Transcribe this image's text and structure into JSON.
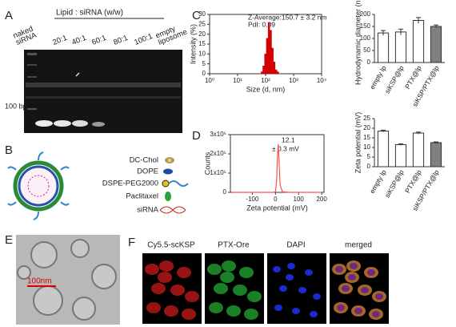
{
  "panels": {
    "A": {
      "label": "A",
      "header": "Lipid : siRNA (w/w)",
      "lanes": [
        "naked siRNA",
        "20:1",
        "40:1",
        "60:1",
        "80:1",
        "100:1",
        "empty liposome"
      ],
      "marker": "100 bp"
    },
    "B": {
      "label": "B",
      "legend": [
        "DC-Chol",
        "DOPE",
        "DSPE-PEG2000",
        "Paclitaxel",
        "siRNA"
      ]
    },
    "C": {
      "label": "C"
    },
    "D": {
      "label": "D"
    },
    "E": {
      "label": "E",
      "scale_bar": "100nm"
    },
    "F": {
      "label": "F",
      "images": [
        "Cy5.5-scKSP",
        "PTX-Ore",
        "DAPI",
        "merged"
      ]
    }
  },
  "chart_data": [
    {
      "type": "histogram",
      "annotations": [
        "Z-Average:150.7 ± 3.2 nm",
        "PdI: 0.09"
      ],
      "xlabel": "Size (d, nm)",
      "ylabel": "Intensity (%)",
      "bins": [
        68,
        79,
        91,
        106,
        122,
        142,
        164,
        190,
        220,
        255,
        295
      ],
      "values": [
        1,
        4,
        10,
        18,
        26,
        22,
        13,
        6,
        2,
        1
      ],
      "color": "#e00000",
      "log_x": true,
      "xlim": [
        1,
        10000
      ],
      "xticks": [
        {
          "value": 1,
          "label": "10⁰"
        },
        {
          "value": 10,
          "label": "10¹"
        },
        {
          "value": 100,
          "label": "10²"
        },
        {
          "value": 1000,
          "label": "10³"
        },
        {
          "value": 10000,
          "label": "10⁴"
        }
      ],
      "ylim": [
        0,
        30
      ],
      "yticks": [
        0,
        5,
        10,
        15,
        20,
        25,
        30
      ]
    },
    {
      "type": "bar",
      "ylabel": "Hydrodynamic diameter (nm)",
      "categories": [
        "empty lp",
        "siKSP@lp",
        "PTX@lp",
        "siKSP/PTX@lp"
      ],
      "values": [
        123,
        127,
        175,
        150
      ],
      "errors": [
        10,
        12,
        12,
        6
      ],
      "colors": [
        "#ffffff",
        "#ffffff",
        "#ffffff",
        "#808080"
      ],
      "ylim": [
        0,
        200
      ],
      "yticks": [
        0,
        50,
        100,
        150,
        200
      ]
    },
    {
      "type": "line",
      "annotations": [
        "12.1",
        "± 0.3 mV"
      ],
      "xlabel": "Zeta potential (mV)",
      "ylabel": "Counts",
      "x": [
        -190,
        -50,
        -10,
        0,
        5,
        9,
        12,
        15,
        20,
        30,
        60,
        200
      ],
      "values": [
        0,
        0,
        0,
        2000,
        60000,
        200000,
        250000,
        180000,
        40000,
        3000,
        0,
        0
      ],
      "color": "#ff5050",
      "xlim": [
        -195,
        210
      ],
      "xticks": [
        -100,
        0,
        100,
        200
      ],
      "ylim": [
        0,
        300000
      ],
      "yticks": [
        0,
        {
          "value": 100000,
          "label": "1x10⁵"
        },
        {
          "value": 200000,
          "label": "2x10⁵"
        },
        {
          "value": 300000,
          "label": "3x10⁵"
        }
      ]
    },
    {
      "type": "bar",
      "ylabel": "Zeta potential (mV)",
      "categories": [
        "empty lp",
        "siKSP@lp",
        "PTX@lp",
        "siKSP/PTX@lp"
      ],
      "values": [
        18.5,
        11.5,
        17.5,
        12.5
      ],
      "errors": [
        0.5,
        0.4,
        0.5,
        0.4
      ],
      "colors": [
        "#ffffff",
        "#ffffff",
        "#ffffff",
        "#808080"
      ],
      "ylim": [
        0,
        25
      ],
      "yticks": [
        0,
        5,
        10,
        15,
        20,
        25
      ]
    }
  ]
}
